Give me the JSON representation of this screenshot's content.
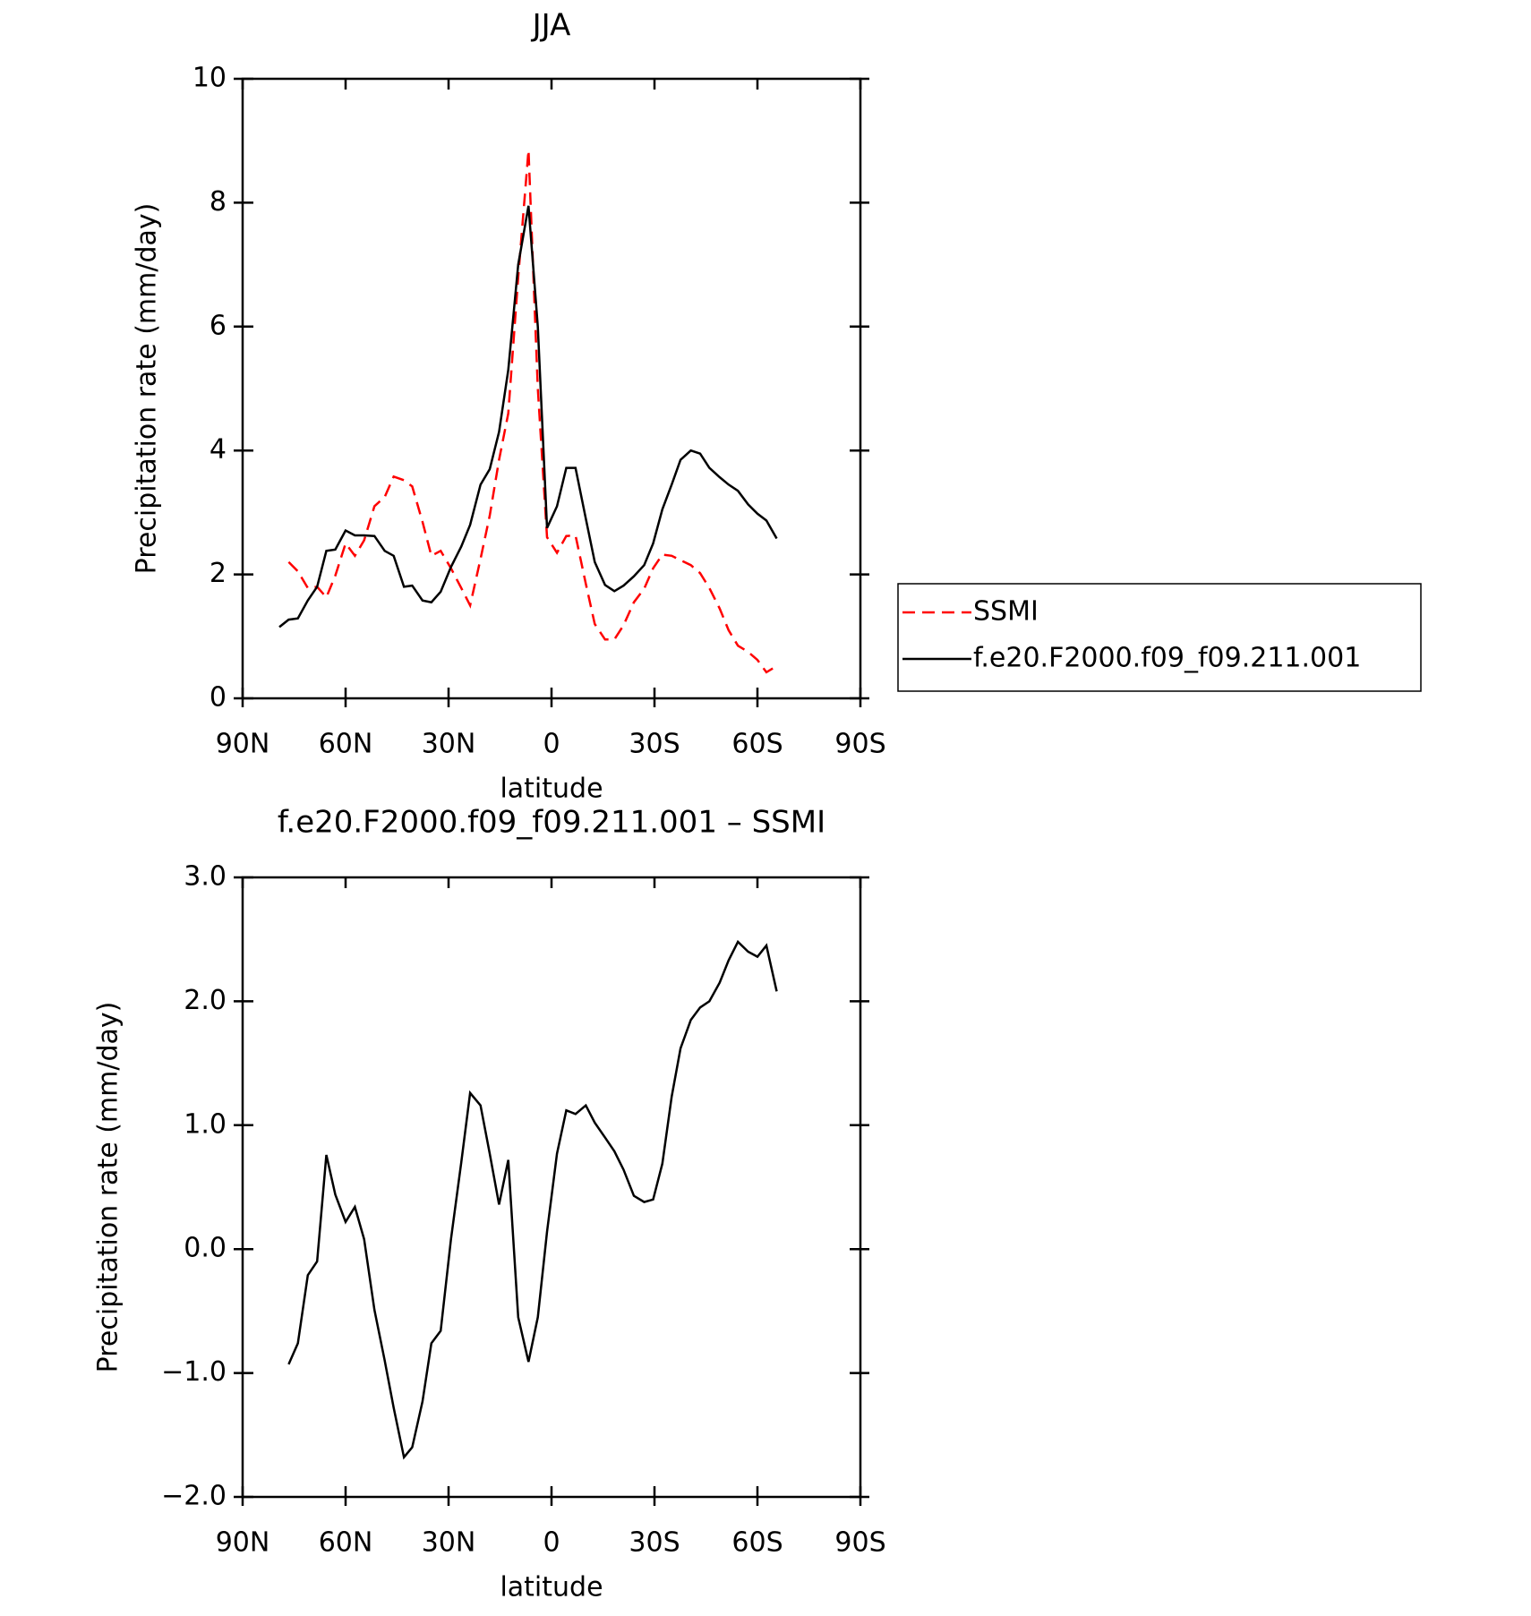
{
  "chart_data": [
    {
      "type": "line",
      "title": "JJA",
      "xlabel": "latitude",
      "ylabel": "Precipitation rate (mm/day)",
      "x": [
        79.3,
        76.6,
        73.9,
        71.0,
        68.3,
        65.6,
        63.0,
        60.0,
        57.3,
        54.6,
        51.6,
        48.6,
        46.0,
        43.0,
        40.6,
        37.6,
        35.0,
        32.3,
        29.3,
        26.3,
        23.7,
        20.7,
        18.0,
        15.3,
        12.6,
        9.7,
        6.7,
        4.0,
        1.3,
        -1.6,
        -4.3,
        -7.0,
        -10.0,
        -12.6,
        -15.6,
        -18.3,
        -21.0,
        -24.0,
        -27.0,
        -29.6,
        -32.3,
        -35.0,
        -37.6,
        -40.6,
        -43.3,
        -46.0,
        -49.0,
        -51.6,
        -54.3,
        -57.3,
        -60.0,
        -62.6,
        -65.6
      ],
      "series": [
        {
          "name": "SSMI",
          "color": "#ff0000",
          "dash": true,
          "values": [
            null,
            2.2,
            2.05,
            1.78,
            1.8,
            1.63,
            1.98,
            2.5,
            2.3,
            2.55,
            3.1,
            3.25,
            3.58,
            3.52,
            3.42,
            2.85,
            2.3,
            2.38,
            2.1,
            1.78,
            1.5,
            2.25,
            2.95,
            3.85,
            4.6,
            6.8,
            8.85,
            5.0,
            2.6,
            2.35,
            2.62,
            2.63,
            1.85,
            1.2,
            0.95,
            0.95,
            1.18,
            1.55,
            1.77,
            2.1,
            2.32,
            2.3,
            2.23,
            2.15,
            2.02,
            1.78,
            1.45,
            1.1,
            0.85,
            0.75,
            0.62,
            0.42,
            0.52
          ]
        },
        {
          "name": "f.e20.F2000.f09_f09.211.001",
          "color": "#000000",
          "dash": false,
          "values": [
            1.15,
            1.27,
            1.29,
            1.58,
            1.8,
            2.38,
            2.4,
            2.71,
            2.63,
            2.63,
            2.62,
            2.38,
            2.3,
            1.8,
            1.82,
            1.58,
            1.55,
            1.72,
            2.12,
            2.45,
            2.8,
            3.45,
            3.7,
            4.3,
            5.3,
            7.0,
            7.95,
            6.0,
            2.75,
            3.1,
            3.72,
            3.72,
            2.9,
            2.2,
            1.83,
            1.73,
            1.82,
            1.97,
            2.15,
            2.5,
            3.05,
            3.45,
            3.85,
            4.0,
            3.95,
            3.72,
            3.57,
            3.45,
            3.35,
            3.13,
            2.98,
            2.87,
            2.58
          ]
        }
      ],
      "xlim": [
        90,
        -90
      ],
      "xticks": [
        {
          "value": 90,
          "label": "90N"
        },
        {
          "value": 60,
          "label": "60N"
        },
        {
          "value": 30,
          "label": "30N"
        },
        0,
        {
          "value": -30,
          "label": "30S"
        },
        {
          "value": -60,
          "label": "60S"
        },
        {
          "value": -90,
          "label": "90S"
        }
      ],
      "ylim": [
        0,
        10
      ],
      "yticks": [
        0,
        2,
        4,
        6,
        8,
        10
      ],
      "legend": "right"
    },
    {
      "type": "line",
      "title": "f.e20.F2000.f09_f09.211.001 – SSMI",
      "xlabel": "latitude",
      "ylabel": "Precipitation rate (mm/day)",
      "x": [
        76.6,
        73.9,
        71.0,
        68.3,
        65.6,
        63.0,
        60.0,
        57.3,
        54.6,
        51.6,
        48.6,
        46.0,
        43.0,
        40.6,
        37.6,
        35.0,
        32.3,
        29.3,
        26.3,
        23.7,
        20.7,
        18.0,
        15.3,
        12.6,
        9.7,
        6.7,
        4.0,
        1.3,
        -1.6,
        -4.3,
        -7.0,
        -10.0,
        -12.6,
        -15.6,
        -18.3,
        -21.0,
        -24.0,
        -27.0,
        -29.6,
        -32.3,
        -35.0,
        -37.6,
        -40.6,
        -43.3,
        -46.0,
        -49.0,
        -51.6,
        -54.3,
        -57.3,
        -60.0,
        -62.6,
        -65.6
      ],
      "color": "#000000",
      "values": [
        -0.93,
        -0.76,
        -0.21,
        -0.1,
        0.76,
        0.44,
        0.22,
        0.34,
        0.08,
        -0.49,
        -0.9,
        -1.28,
        -1.68,
        -1.6,
        -1.23,
        -0.76,
        -0.66,
        0.08,
        0.7,
        1.26,
        1.16,
        0.77,
        0.36,
        0.72,
        -0.55,
        -0.91,
        -0.55,
        0.14,
        0.77,
        1.12,
        1.09,
        1.16,
        1.02,
        0.9,
        0.79,
        0.64,
        0.43,
        0.38,
        0.4,
        0.69,
        1.23,
        1.62,
        1.85,
        1.95,
        2.0,
        2.15,
        2.33,
        2.48,
        2.4,
        2.36,
        2.45,
        2.08
      ],
      "xlim": [
        90,
        -90
      ],
      "xticks": [
        {
          "value": 90,
          "label": "90N"
        },
        {
          "value": 60,
          "label": "60N"
        },
        {
          "value": 30,
          "label": "30N"
        },
        0,
        {
          "value": -30,
          "label": "30S"
        },
        {
          "value": -60,
          "label": "60S"
        },
        {
          "value": -90,
          "label": "90S"
        }
      ],
      "ylim": [
        -2,
        3
      ],
      "yticks": [
        {
          "value": -2,
          "label": "−2.0"
        },
        {
          "value": -1,
          "label": "−1.0"
        },
        {
          "value": 0,
          "label": "0.0"
        },
        {
          "value": 1,
          "label": "1.0"
        },
        {
          "value": 2,
          "label": "2.0"
        },
        {
          "value": 3,
          "label": "3.0"
        }
      ]
    }
  ]
}
